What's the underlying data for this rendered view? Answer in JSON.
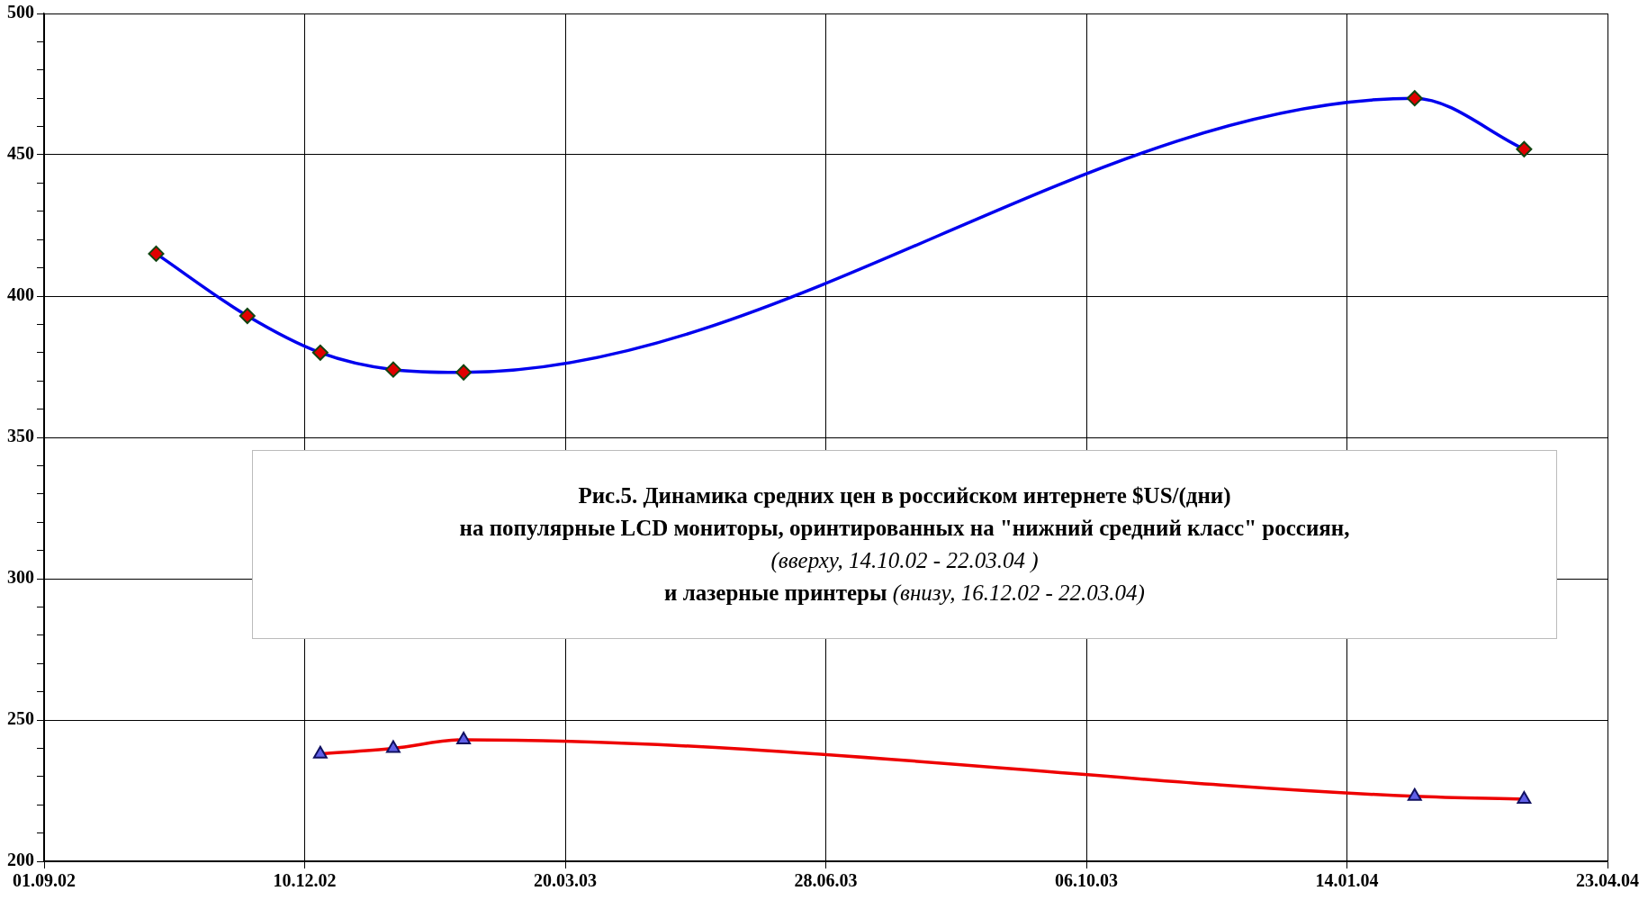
{
  "chart_data": {
    "type": "line",
    "title": "Рис.5.  Динамика средних цен в российском интернете $US/(дни)",
    "subtitle": "на популярные LCD мониторы, оринтированных на \"нижний средний класс\" россиян,",
    "annotations": [
      "(вверху, 14.10.02 - 22.03.04 )",
      "и лазерные принтеры",
      "(внизу, 16.12.02 - 22.03.04)"
    ],
    "series": [
      {
        "color": "#0000ee",
        "marker": "diamond",
        "x": [
          "2002-10-14",
          "2002-11-18",
          "2002-12-16",
          "2003-01-13",
          "2003-02-09",
          "2004-02-09",
          "2004-03-22"
        ],
        "values": [
          415,
          393,
          380,
          374,
          373,
          470,
          452
        ]
      },
      {
        "color": "#ee0000",
        "marker": "triangle",
        "x": [
          "2002-12-16",
          "2003-01-13",
          "2003-02-09",
          "2004-02-09",
          "2004-03-22"
        ],
        "values": [
          238,
          240,
          243,
          223,
          222
        ]
      }
    ],
    "xlim": [
      "2002-09-01",
      "2004-04-23"
    ],
    "xticks": [
      {
        "value": "2002-09-01",
        "label": "01.09.02"
      },
      {
        "value": "2002-12-10",
        "label": "10.12.02"
      },
      {
        "value": "2003-03-20",
        "label": "20.03.03"
      },
      {
        "value": "2003-06-28",
        "label": "28.06.03"
      },
      {
        "value": "2003-10-06",
        "label": "06.10.03"
      },
      {
        "value": "2004-01-14",
        "label": "14.01.04"
      },
      {
        "value": "2004-04-23",
        "label": "23.04.04"
      }
    ],
    "ylim": [
      200,
      500
    ],
    "yticks": [
      200,
      {
        "value": 210,
        "label": null
      },
      {
        "value": 220,
        "label": null
      },
      {
        "value": 230,
        "label": null
      },
      {
        "value": 240,
        "label": null
      },
      250,
      {
        "value": 260,
        "label": null
      },
      {
        "value": 270,
        "label": null
      },
      {
        "value": 280,
        "label": null
      },
      {
        "value": 290,
        "label": null
      },
      300,
      {
        "value": 310,
        "label": null
      },
      {
        "value": 320,
        "label": null
      },
      {
        "value": 330,
        "label": null
      },
      {
        "value": 340,
        "label": null
      },
      350,
      {
        "value": 360,
        "label": null
      },
      {
        "value": 370,
        "label": null
      },
      {
        "value": 380,
        "label": null
      },
      {
        "value": 390,
        "label": null
      },
      400,
      {
        "value": 410,
        "label": null
      },
      {
        "value": 420,
        "label": null
      },
      {
        "value": 430,
        "label": null
      },
      {
        "value": 440,
        "label": null
      },
      450,
      {
        "value": 460,
        "label": null
      },
      {
        "value": 470,
        "label": null
      },
      {
        "value": 480,
        "label": null
      },
      {
        "value": 490,
        "label": null
      },
      500
    ],
    "grid": true,
    "legend": false
  }
}
